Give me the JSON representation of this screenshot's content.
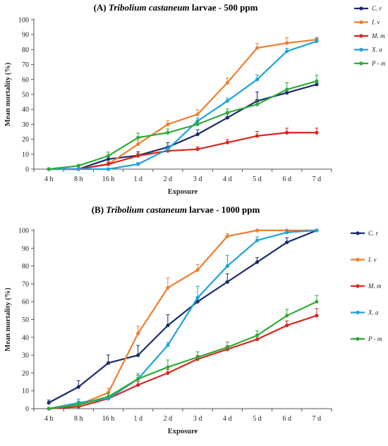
{
  "chart_data": [
    {
      "type": "line",
      "title_prefix": "(A) ",
      "title_italic": "Tribolium castaneum",
      "title_suffix": " larvae - 500 ppm",
      "xlabel": "Exposure",
      "ylabel": "Mean mortality (%)",
      "ylim": [
        0,
        100
      ],
      "yticks": [
        0,
        10,
        20,
        30,
        40,
        50,
        60,
        70,
        80,
        90,
        100
      ],
      "categories": [
        "4 h",
        "8 h",
        "16 h",
        "1 d",
        "2 d",
        "3 d",
        "4 d",
        "5 d",
        "6 d",
        "7 d"
      ],
      "grid": false,
      "legend_position": "right",
      "series": [
        {
          "name": "C. r",
          "color": "#1a2b6b",
          "values": [
            0,
            0,
            6.7,
            9.1,
            14.7,
            23.3,
            34.4,
            45.6,
            51.1,
            56.7
          ],
          "errors": [
            0,
            0,
            1.5,
            2.5,
            3,
            3,
            2.5,
            6,
            2,
            1.5
          ]
        },
        {
          "name": "I. v",
          "color": "#f07d30",
          "values": [
            0,
            0,
            3.3,
            16.7,
            30.0,
            36.7,
            57.8,
            81.1,
            84.4,
            86.7
          ],
          "errors": [
            0,
            0,
            1.5,
            2.5,
            2.5,
            3,
            3,
            3,
            3.5,
            1.5
          ]
        },
        {
          "name": "M. m",
          "color": "#d9261c",
          "values": [
            0,
            0,
            3.3,
            8.9,
            12.2,
            13.3,
            17.8,
            22.2,
            24.4,
            24.4
          ],
          "errors": [
            0,
            0,
            1.5,
            1.5,
            1.5,
            1.5,
            2,
            3,
            3,
            3
          ]
        },
        {
          "name": "X. a",
          "color": "#1ba3d8",
          "values": [
            0,
            0,
            0,
            3.3,
            13.3,
            32.2,
            45.6,
            60.0,
            78.9,
            85.6
          ],
          "errors": [
            0,
            0,
            0,
            1,
            2,
            2,
            2,
            3,
            2,
            2
          ]
        },
        {
          "name": "P - m",
          "color": "#2eab39",
          "values": [
            0,
            2.2,
            8.9,
            21.1,
            24.4,
            30.0,
            37.8,
            43.3,
            53.3,
            58.9
          ],
          "errors": [
            0,
            1,
            2.5,
            3,
            2.5,
            2,
            2.5,
            3.5,
            4.5,
            4
          ]
        }
      ]
    },
    {
      "type": "line",
      "title_prefix": "(B) ",
      "title_italic": "Tribolium castaneum",
      "title_suffix": " larvae - 1000 ppm",
      "xlabel": "Exposure",
      "ylabel": "Mean mortality (%)",
      "ylim": [
        0,
        100
      ],
      "yticks": [
        0,
        10,
        20,
        30,
        40,
        50,
        60,
        70,
        80,
        90,
        100
      ],
      "categories": [
        "4 h",
        "8 h",
        "16 h",
        "1 d",
        "2 d",
        "3 d",
        "4 d",
        "5 d",
        "6 d",
        "7 d"
      ],
      "grid": false,
      "legend_position": "right",
      "series": [
        {
          "name": "C. r",
          "color": "#1a2b6b",
          "values": [
            3.3,
            12.2,
            25.6,
            30.0,
            46.7,
            60.0,
            71.1,
            82.2,
            93.3,
            100
          ],
          "errors": [
            1.5,
            3.5,
            4.5,
            5.5,
            6,
            2.5,
            4.5,
            2.5,
            2.5,
            0
          ]
        },
        {
          "name": "I. v",
          "color": "#f07d30",
          "values": [
            0,
            2.2,
            8.9,
            42.2,
            67.8,
            77.8,
            96.7,
            100,
            100,
            100
          ],
          "errors": [
            0,
            1,
            2.5,
            4,
            5.5,
            3,
            1.5,
            0,
            0,
            0
          ]
        },
        {
          "name": "M. m",
          "color": "#d9261c",
          "values": [
            0,
            1.1,
            5.6,
            13.3,
            20.0,
            27.8,
            33.3,
            38.9,
            46.7,
            52.2
          ],
          "errors": [
            0,
            1,
            1.5,
            2,
            2,
            2,
            2,
            2,
            2.5,
            4
          ]
        },
        {
          "name": "X. a",
          "color": "#1ba3d8",
          "values": [
            0,
            3.3,
            5.6,
            16.7,
            35.6,
            62.2,
            80.0,
            94.4,
            98.9,
            100
          ],
          "errors": [
            0,
            2,
            1.5,
            2,
            1.5,
            6.5,
            6,
            2,
            1,
            0
          ]
        },
        {
          "name": "P - m",
          "color": "#2eab39",
          "values": [
            0,
            2.2,
            6.7,
            16.7,
            23.3,
            28.9,
            34.4,
            41.1,
            52.2,
            60.0
          ],
          "errors": [
            0,
            2,
            2,
            3,
            4,
            3,
            3,
            2.5,
            3.5,
            3.5
          ]
        }
      ]
    }
  ]
}
